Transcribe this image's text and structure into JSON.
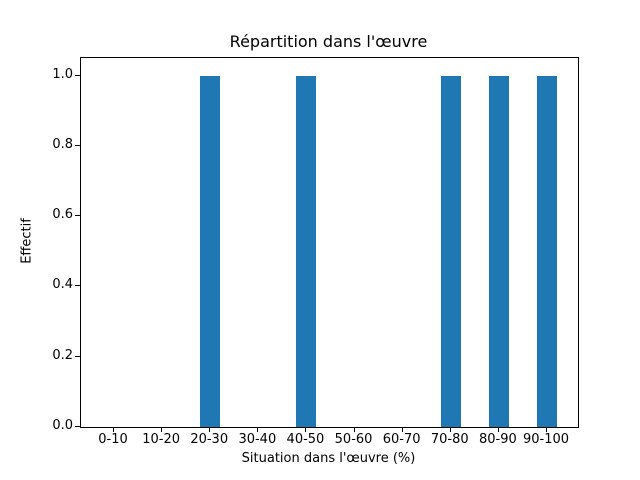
{
  "chart_data": {
    "type": "bar",
    "title": "Répartition dans l'œuvre",
    "xlabel": "Situation dans l'œuvre (%)",
    "ylabel": "Effectif",
    "categories": [
      "0-10",
      "10-20",
      "20-30",
      "30-40",
      "40-50",
      "50-60",
      "60-70",
      "70-80",
      "80-90",
      "90-100"
    ],
    "values": [
      0,
      0,
      1,
      0,
      1,
      0,
      0,
      1,
      1,
      1
    ],
    "ytick_labels": [
      "0.0",
      "0.2",
      "0.4",
      "0.6",
      "0.8",
      "1.0"
    ],
    "yticks": [
      0.0,
      0.2,
      0.4,
      0.6,
      0.8,
      1.0
    ],
    "ylim": [
      0,
      1.05
    ],
    "bar_color": "#1f77b4",
    "grid": false,
    "legend": null
  }
}
